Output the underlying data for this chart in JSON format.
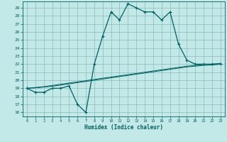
{
  "xlabel": "Humidex (Indice chaleur)",
  "bg_color": "#c2e8e8",
  "grid_color": "#88bbbb",
  "line_color": "#006060",
  "xlim": [
    -0.5,
    23.5
  ],
  "ylim": [
    15.5,
    29.8
  ],
  "yticks": [
    16,
    17,
    18,
    19,
    20,
    21,
    22,
    23,
    24,
    25,
    26,
    27,
    28,
    29
  ],
  "xticks": [
    0,
    1,
    2,
    3,
    4,
    5,
    6,
    7,
    8,
    9,
    10,
    11,
    12,
    13,
    14,
    15,
    16,
    17,
    18,
    19,
    20,
    21,
    22,
    23
  ],
  "main_curve": [
    19,
    18.5,
    18.5,
    19,
    19,
    19.3,
    17.0,
    16.0,
    22,
    25.5,
    28.5,
    27.5,
    29.5,
    29,
    28.5,
    28.5,
    27.5,
    28.5,
    24.5,
    22.5,
    22,
    22,
    22,
    22
  ],
  "line2": [
    19,
    19.1,
    19.2,
    19.35,
    19.5,
    19.65,
    19.8,
    19.95,
    20.1,
    20.25,
    20.4,
    20.55,
    20.7,
    20.85,
    21.0,
    21.15,
    21.3,
    21.45,
    21.6,
    21.75,
    21.85,
    21.95,
    22.0,
    22.1
  ],
  "line3": [
    19,
    19.05,
    19.15,
    19.25,
    19.4,
    19.55,
    19.7,
    19.85,
    20.0,
    20.15,
    20.3,
    20.45,
    20.6,
    20.75,
    20.9,
    21.05,
    21.2,
    21.35,
    21.5,
    21.65,
    21.75,
    21.85,
    21.9,
    22.0
  ]
}
